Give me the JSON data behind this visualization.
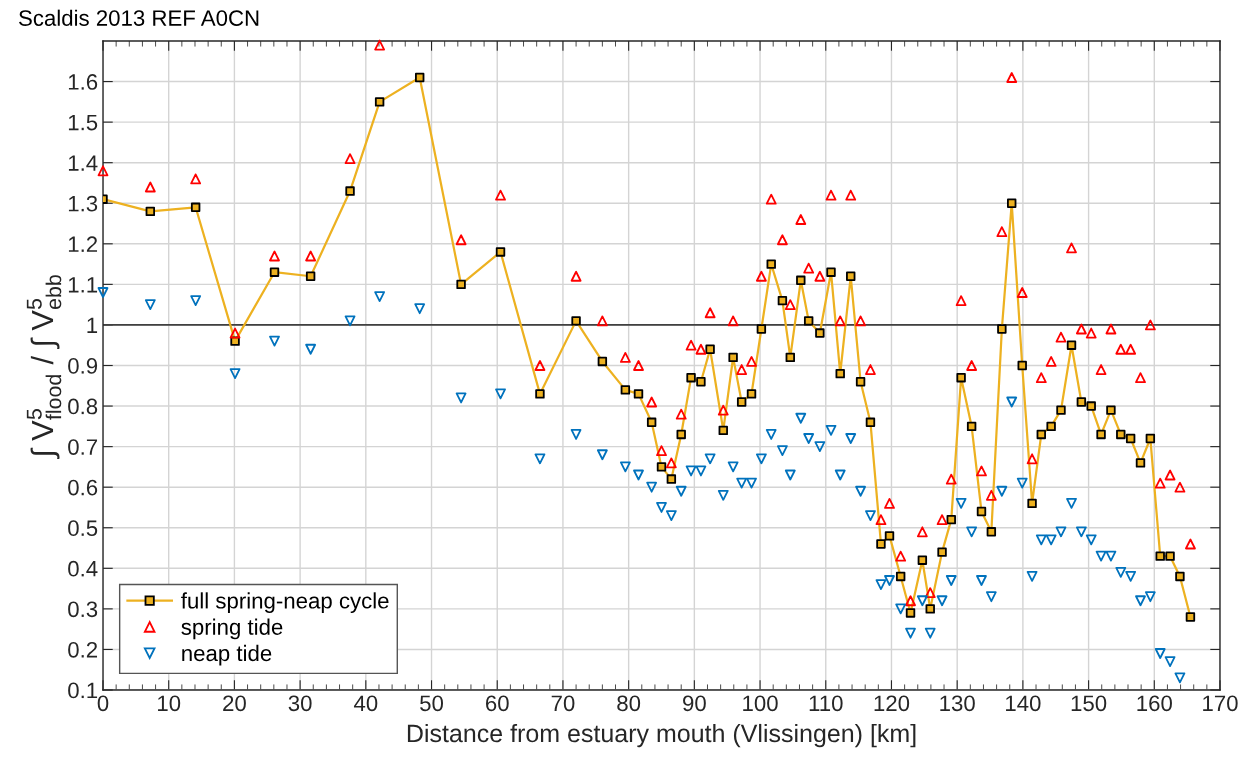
{
  "chart_data": {
    "type": "line",
    "title": "Scaldis 2013 REF A0CN",
    "xlabel": "Distance from estuary mouth (Vlissingen) [km]",
    "ylabel": "∫ V$^{5}$$_{flood}$ / ∫ V$^{5}$$_{ebb}$",
    "x": [
      0,
      7.2,
      14.1,
      20.1,
      26.1,
      31.6,
      37.6,
      42.1,
      48.2,
      54.5,
      60.5,
      66.5,
      72.0,
      76.0,
      79.5,
      81.5,
      83.5,
      85.0,
      86.5,
      88.0,
      89.5,
      91.0,
      92.4,
      94.4,
      95.9,
      97.2,
      98.7,
      100.2,
      101.7,
      103.4,
      104.6,
      106.2,
      107.4,
      109.1,
      110.8,
      112.2,
      113.8,
      115.3,
      116.8,
      118.4,
      119.7,
      121.4,
      122.9,
      124.7,
      125.9,
      127.7,
      129.1,
      130.6,
      132.2,
      133.7,
      135.2,
      136.8,
      138.3,
      139.9,
      141.4,
      142.8,
      144.3,
      145.8,
      147.4,
      148.9,
      150.4,
      151.9,
      153.4,
      154.9,
      156.4,
      157.9,
      159.4,
      160.9,
      162.4,
      163.9,
      165.5
    ],
    "series": [
      {
        "name": "full spring-neap cycle",
        "color": "#edb120",
        "marker": "square",
        "values": [
          1.31,
          1.28,
          1.29,
          0.96,
          1.13,
          1.12,
          1.33,
          1.55,
          1.61,
          1.1,
          1.18,
          0.83,
          1.01,
          0.91,
          0.84,
          0.83,
          0.76,
          0.65,
          0.62,
          0.73,
          0.87,
          0.86,
          0.94,
          0.74,
          0.92,
          0.81,
          0.83,
          0.99,
          1.15,
          1.06,
          0.92,
          1.11,
          1.01,
          0.98,
          1.13,
          0.88,
          1.12,
          0.86,
          0.76,
          0.46,
          0.48,
          0.38,
          0.29,
          0.42,
          0.3,
          0.44,
          0.52,
          0.87,
          0.75,
          0.54,
          0.49,
          0.99,
          1.3,
          0.9,
          0.56,
          0.73,
          0.75,
          0.79,
          0.95,
          0.81,
          0.8,
          0.73,
          0.79,
          0.73,
          0.72,
          0.66,
          0.72,
          0.43,
          0.43,
          0.38,
          0.28
        ]
      },
      {
        "name": "spring tide",
        "type": "scatter",
        "color": "#ff0000",
        "marker": "triangle",
        "values": [
          1.38,
          1.34,
          1.36,
          0.98,
          1.17,
          1.17,
          1.41,
          1.69,
          null,
          1.21,
          1.32,
          0.9,
          1.12,
          1.01,
          0.92,
          0.9,
          0.81,
          0.69,
          0.66,
          0.78,
          0.95,
          0.94,
          1.03,
          0.79,
          1.01,
          0.89,
          0.91,
          1.12,
          1.31,
          1.21,
          1.05,
          1.26,
          1.14,
          1.12,
          1.32,
          1.01,
          1.32,
          1.01,
          0.89,
          0.52,
          0.56,
          0.43,
          0.32,
          0.49,
          0.34,
          0.52,
          0.62,
          1.06,
          0.9,
          0.64,
          0.58,
          1.23,
          1.61,
          1.08,
          0.67,
          0.87,
          0.91,
          0.97,
          1.19,
          0.99,
          0.98,
          0.89,
          0.99,
          0.94,
          0.94,
          0.87,
          1.0,
          0.61,
          0.63,
          0.6,
          0.46
        ]
      },
      {
        "name": "neap tide",
        "type": "scatter",
        "color": "#0072bd",
        "marker": "triangle_down",
        "values": [
          1.08,
          1.05,
          1.06,
          0.88,
          0.96,
          0.94,
          1.01,
          1.07,
          1.04,
          0.82,
          0.83,
          0.67,
          0.73,
          0.68,
          0.65,
          0.63,
          0.6,
          0.55,
          0.53,
          0.59,
          0.64,
          0.64,
          0.67,
          0.58,
          0.65,
          0.61,
          0.61,
          0.67,
          0.73,
          0.69,
          0.63,
          0.77,
          0.72,
          0.7,
          0.74,
          0.63,
          0.72,
          0.59,
          0.53,
          0.36,
          0.37,
          0.3,
          0.24,
          0.32,
          0.24,
          0.32,
          0.37,
          0.56,
          0.49,
          0.37,
          0.33,
          0.59,
          0.81,
          0.61,
          0.38,
          0.47,
          0.47,
          0.49,
          0.56,
          0.49,
          0.47,
          0.43,
          0.43,
          0.39,
          0.38,
          0.32,
          0.33,
          0.19,
          0.17,
          0.13,
          null
        ]
      }
    ],
    "xlim": [
      0,
      170
    ],
    "xticks": [
      0,
      10,
      20,
      30,
      40,
      50,
      60,
      70,
      80,
      90,
      100,
      110,
      120,
      130,
      140,
      150,
      160,
      170
    ],
    "ylim": [
      0.1,
      1.7
    ],
    "yticks": [
      0.1,
      0.2,
      0.3,
      0.4,
      0.5,
      0.6,
      0.7,
      0.8,
      0.9,
      1,
      1.1,
      1.2,
      1.3,
      1.4,
      1.5,
      1.6
    ],
    "ref_lines": [
      {
        "axis": "y",
        "value": 1,
        "color": "#404040"
      }
    ],
    "grid": true,
    "legend": "bottom left"
  }
}
